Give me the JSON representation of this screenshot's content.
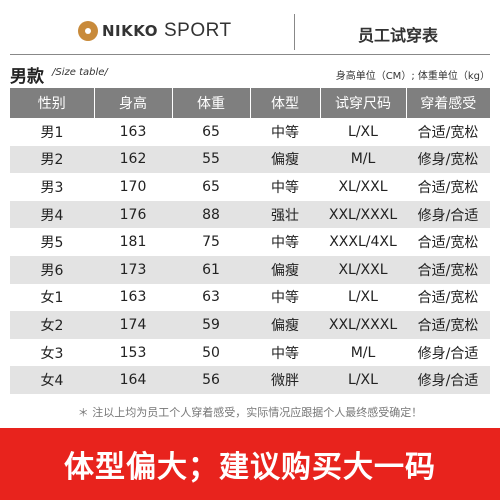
{
  "header": {
    "brand": "NIKKO",
    "brand_suffix": "SPORT",
    "title": "员工试穿表"
  },
  "section": {
    "title": "男款",
    "subtitle": "/Size table/",
    "units": "身高单位（CM）; 体重单位（kg）"
  },
  "table": {
    "columns": [
      "性别",
      "身高",
      "体重",
      "体型",
      "试穿尺码",
      "穿着感受"
    ],
    "rows": [
      [
        "男1",
        "163",
        "65",
        "中等",
        "L/XL",
        "合适/宽松"
      ],
      [
        "男2",
        "162",
        "55",
        "偏瘦",
        "M/L",
        "修身/宽松"
      ],
      [
        "男3",
        "170",
        "65",
        "中等",
        "XL/XXL",
        "合适/宽松"
      ],
      [
        "男4",
        "176",
        "88",
        "强壮",
        "XXL/XXXL",
        "修身/合适"
      ],
      [
        "男5",
        "181",
        "75",
        "中等",
        "XXXL/4XL",
        "合适/宽松"
      ],
      [
        "男6",
        "173",
        "61",
        "偏瘦",
        "XL/XXL",
        "合适/宽松"
      ],
      [
        "女1",
        "163",
        "63",
        "中等",
        "L/XL",
        "合适/宽松"
      ],
      [
        "女2",
        "174",
        "59",
        "偏瘦",
        "XXL/XXXL",
        "合适/宽松"
      ],
      [
        "女3",
        "153",
        "50",
        "中等",
        "M/L",
        "修身/合适"
      ],
      [
        "女4",
        "164",
        "56",
        "微胖",
        "L/XL",
        "修身/合适"
      ]
    ]
  },
  "note": "＊ 注以上均为员工个人穿着感受，实际情况应跟据个人最终感受确定！",
  "banner": "体型偏大；建议购买大一码",
  "colors": {
    "brand_gold": "#c88a3a",
    "header_gray": "#7f7f7f",
    "row_alt": "#e3e3e3",
    "banner_red": "#e8231d"
  }
}
